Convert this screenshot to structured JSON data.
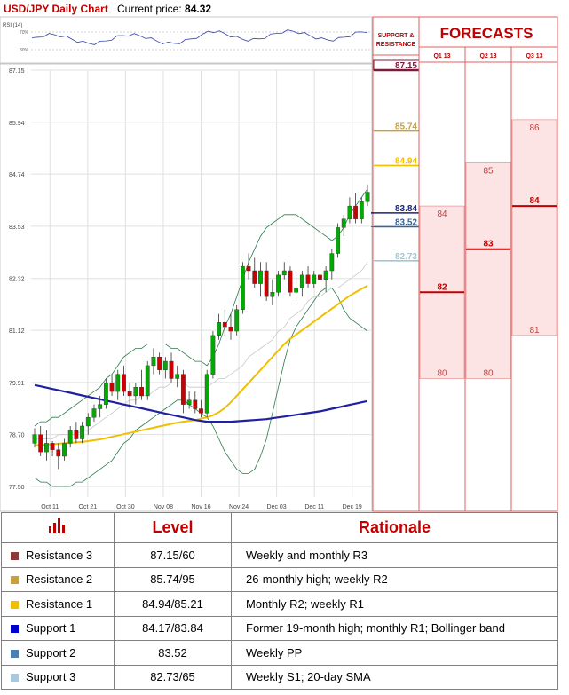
{
  "header": {
    "title": "USD/JPY Daily Chart",
    "price_label": "Current price:",
    "price_value": "84.32"
  },
  "chart_data": {
    "type": "candlestick",
    "y_ticks": [
      "87.15",
      "85.94",
      "84.74",
      "83.53",
      "82.32",
      "81.12",
      "79.91",
      "78.70",
      "77.50"
    ],
    "x_ticks": [
      "Oct 11",
      "Oct 21",
      "Oct 30",
      "Nov 08",
      "Nov 16",
      "Nov 24",
      "Dec 03",
      "Dec 11",
      "Dec 19"
    ],
    "ylim": [
      77.5,
      87.15
    ],
    "rsi": {
      "label": "RSI (14)",
      "ticks": [
        "70%",
        "30%"
      ]
    },
    "candles": [
      [
        78.5,
        78.85,
        78.4,
        78.7
      ],
      [
        78.7,
        78.9,
        78.2,
        78.3
      ],
      [
        78.3,
        78.8,
        78.1,
        78.5
      ],
      [
        78.5,
        78.55,
        78.2,
        78.35
      ],
      [
        78.35,
        78.5,
        77.9,
        78.2
      ],
      [
        78.2,
        78.6,
        78.1,
        78.5
      ],
      [
        78.5,
        78.9,
        78.4,
        78.8
      ],
      [
        78.8,
        79.0,
        78.5,
        78.6
      ],
      [
        78.6,
        79.0,
        78.5,
        78.9
      ],
      [
        78.9,
        79.2,
        78.7,
        79.1
      ],
      [
        79.1,
        79.4,
        79.0,
        79.3
      ],
      [
        79.3,
        79.6,
        79.1,
        79.4
      ],
      [
        79.4,
        80.0,
        79.3,
        79.9
      ],
      [
        79.9,
        80.1,
        79.6,
        79.7
      ],
      [
        79.7,
        80.2,
        79.5,
        80.1
      ],
      [
        80.1,
        80.3,
        79.6,
        79.7
      ],
      [
        79.7,
        79.9,
        79.3,
        79.6
      ],
      [
        79.6,
        79.9,
        79.4,
        79.8
      ],
      [
        79.8,
        80.2,
        79.5,
        79.6
      ],
      [
        79.6,
        80.4,
        79.5,
        80.3
      ],
      [
        80.3,
        80.7,
        80.1,
        80.5
      ],
      [
        80.5,
        80.6,
        80.1,
        80.2
      ],
      [
        80.2,
        80.5,
        80.0,
        80.4
      ],
      [
        80.4,
        80.6,
        79.9,
        80.0
      ],
      [
        80.0,
        80.3,
        79.8,
        80.1
      ],
      [
        80.1,
        80.2,
        79.2,
        79.4
      ],
      [
        79.4,
        79.7,
        79.3,
        79.5
      ],
      [
        79.5,
        79.7,
        79.2,
        79.3
      ],
      [
        79.3,
        79.5,
        79.1,
        79.2
      ],
      [
        79.2,
        80.2,
        79.1,
        80.1
      ],
      [
        80.1,
        81.1,
        80.0,
        81.0
      ],
      [
        81.0,
        81.5,
        80.9,
        81.3
      ],
      [
        81.3,
        81.6,
        81.0,
        81.2
      ],
      [
        81.2,
        81.5,
        80.9,
        81.1
      ],
      [
        81.1,
        81.7,
        81.0,
        81.6
      ],
      [
        81.6,
        82.7,
        81.5,
        82.6
      ],
      [
        82.6,
        82.9,
        82.3,
        82.5
      ],
      [
        82.5,
        82.8,
        82.1,
        82.2
      ],
      [
        82.2,
        82.7,
        81.9,
        82.5
      ],
      [
        82.5,
        82.7,
        81.8,
        81.9
      ],
      [
        81.9,
        82.3,
        81.7,
        82.0
      ],
      [
        82.0,
        82.5,
        81.9,
        82.4
      ],
      [
        82.4,
        82.7,
        82.3,
        82.5
      ],
      [
        82.5,
        82.6,
        81.9,
        82.0
      ],
      [
        82.0,
        82.4,
        81.8,
        82.1
      ],
      [
        82.1,
        82.5,
        81.9,
        82.4
      ],
      [
        82.4,
        82.6,
        82.1,
        82.2
      ],
      [
        82.2,
        82.5,
        82.1,
        82.4
      ],
      [
        82.4,
        82.6,
        82.0,
        82.3
      ],
      [
        82.3,
        82.6,
        82.0,
        82.5
      ],
      [
        82.5,
        83.0,
        82.3,
        82.9
      ],
      [
        82.9,
        83.6,
        82.8,
        83.5
      ],
      [
        83.5,
        83.8,
        83.3,
        83.7
      ],
      [
        83.7,
        84.2,
        83.6,
        84.0
      ],
      [
        84.0,
        84.3,
        83.6,
        83.7
      ],
      [
        83.7,
        84.2,
        83.6,
        84.1
      ],
      [
        84.1,
        84.5,
        84.0,
        84.32
      ]
    ],
    "sma20": [
      78.6,
      78.6,
      78.6,
      78.6,
      78.7,
      78.7,
      78.7,
      78.7,
      78.8,
      78.8,
      78.9,
      79.0,
      79.1,
      79.2,
      79.3,
      79.4,
      79.5,
      79.5,
      79.6,
      79.6,
      79.7,
      79.8,
      79.8,
      79.9,
      79.9,
      79.9,
      79.8,
      79.8,
      79.8,
      79.8,
      79.9,
      80.0,
      80.0,
      80.1,
      80.2,
      80.3,
      80.5,
      80.6,
      80.7,
      80.8,
      80.9,
      81.1,
      81.2,
      81.4,
      81.5,
      81.6,
      81.8,
      81.9,
      81.9,
      82.0,
      82.1,
      82.1,
      82.2,
      82.3,
      82.4,
      82.5,
      82.7
    ],
    "sma50": [
      78.45,
      78.46,
      78.47,
      78.48,
      78.49,
      78.5,
      78.51,
      78.52,
      78.53,
      78.55,
      78.57,
      78.59,
      78.62,
      78.65,
      78.68,
      78.71,
      78.74,
      78.77,
      78.8,
      78.83,
      78.86,
      78.89,
      78.92,
      78.95,
      78.98,
      79.0,
      79.02,
      79.04,
      79.07,
      79.1,
      79.15,
      79.22,
      79.32,
      79.45,
      79.6,
      79.75,
      79.9,
      80.05,
      80.2,
      80.35,
      80.5,
      80.65,
      80.8,
      80.92,
      81.02,
      81.12,
      81.22,
      81.32,
      81.42,
      81.52,
      81.62,
      81.72,
      81.82,
      81.92,
      82.0,
      82.08,
      82.15
    ],
    "sma200": [
      79.85,
      79.82,
      79.79,
      79.76,
      79.73,
      79.7,
      79.67,
      79.64,
      79.61,
      79.58,
      79.55,
      79.52,
      79.49,
      79.46,
      79.43,
      79.4,
      79.37,
      79.34,
      79.31,
      79.28,
      79.25,
      79.22,
      79.19,
      79.16,
      79.13,
      79.1,
      79.07,
      79.04,
      79.02,
      79.0,
      79.0,
      79.0,
      79.0,
      79.0,
      79.01,
      79.02,
      79.03,
      79.04,
      79.05,
      79.06,
      79.08,
      79.1,
      79.12,
      79.14,
      79.16,
      79.18,
      79.2,
      79.22,
      79.24,
      79.27,
      79.3,
      79.33,
      79.36,
      79.39,
      79.42,
      79.45,
      79.48
    ],
    "boll_upper": [
      78.9,
      79.0,
      79.0,
      79.1,
      79.1,
      79.2,
      79.3,
      79.4,
      79.5,
      79.6,
      79.7,
      79.8,
      80.0,
      80.1,
      80.3,
      80.5,
      80.6,
      80.7,
      80.7,
      80.8,
      80.8,
      80.8,
      80.8,
      80.7,
      80.7,
      80.6,
      80.5,
      80.4,
      80.4,
      80.3,
      80.5,
      80.8,
      81.2,
      81.5,
      81.9,
      82.3,
      82.7,
      83.0,
      83.3,
      83.5,
      83.6,
      83.7,
      83.8,
      83.8,
      83.8,
      83.7,
      83.6,
      83.5,
      83.4,
      83.3,
      83.2,
      83.3,
      83.5,
      83.8,
      84.0,
      84.2,
      84.4
    ],
    "boll_lower": [
      77.7,
      77.6,
      77.6,
      77.5,
      77.5,
      77.5,
      77.5,
      77.6,
      77.6,
      77.7,
      77.8,
      77.9,
      78.0,
      78.1,
      78.3,
      78.5,
      78.6,
      78.8,
      78.9,
      79.0,
      79.1,
      79.2,
      79.3,
      79.4,
      79.5,
      79.5,
      79.4,
      79.3,
      79.2,
      79.1,
      78.9,
      78.6,
      78.3,
      78.1,
      77.9,
      77.8,
      77.8,
      77.9,
      78.2,
      78.6,
      79.2,
      79.8,
      80.4,
      80.9,
      81.2,
      81.4,
      81.6,
      81.8,
      82.0,
      82.1,
      82.1,
      81.9,
      81.6,
      81.4,
      81.3,
      81.2,
      81.1
    ]
  },
  "levels_panel": {
    "header": "SUPPORT & RESISTANCE",
    "values": [
      {
        "label": "87.15",
        "value": 87.15,
        "color": "#7b1a3a",
        "boxed": true
      },
      {
        "label": "85.74",
        "value": 85.74,
        "color": "#c8a040",
        "boxed": false
      },
      {
        "label": "84.94",
        "value": 84.94,
        "color": "#f0c000",
        "boxed": false
      },
      {
        "label": "83.84",
        "value": 83.84,
        "color": "#1a237e",
        "boxed": false
      },
      {
        "label": "83.52",
        "value": 83.52,
        "color": "#336699",
        "boxed": false
      },
      {
        "label": "82.73",
        "value": 82.73,
        "color": "#a0c8d8",
        "boxed": false
      }
    ]
  },
  "forecasts": {
    "title": "FORECASTS",
    "columns": [
      {
        "label": "Q1 13",
        "high": "84",
        "mid": "82",
        "low": "80",
        "high_v": 84,
        "mid_v": 82,
        "low_v": 80
      },
      {
        "label": "Q2 13",
        "high": "85",
        "mid": "83",
        "low": "80",
        "high_v": 85,
        "mid_v": 83,
        "low_v": 80
      },
      {
        "label": "Q3 13",
        "high": "86",
        "mid": "84",
        "low": "81",
        "high_v": 86,
        "mid_v": 84,
        "low_v": 81
      }
    ]
  },
  "table": {
    "col_level": "Level",
    "col_rationale": "Rationale",
    "rows": [
      {
        "name": "Resistance 3",
        "level": "87.15/60",
        "rationale": "Weekly and monthly R3",
        "color": "#8b3a3a"
      },
      {
        "name": "Resistance 2",
        "level": "85.74/95",
        "rationale": "26-monthly high; weekly R2",
        "color": "#c8a040"
      },
      {
        "name": "Resistance 1",
        "level": "84.94/85.21",
        "rationale": "Monthly R2; weekly R1",
        "color": "#f0c000"
      },
      {
        "name": "Support 1",
        "level": "84.17/83.84",
        "rationale": "Former 19-month high; monthly R1; Bollinger band",
        "color": "#0000cc"
      },
      {
        "name": "Support 2",
        "level": "83.52",
        "rationale": "Weekly PP",
        "color": "#4a7fb0"
      },
      {
        "name": "Support 3",
        "level": "82.73/65",
        "rationale": "Weekly S1; 20-day SMA",
        "color": "#a8c8e0"
      }
    ]
  }
}
